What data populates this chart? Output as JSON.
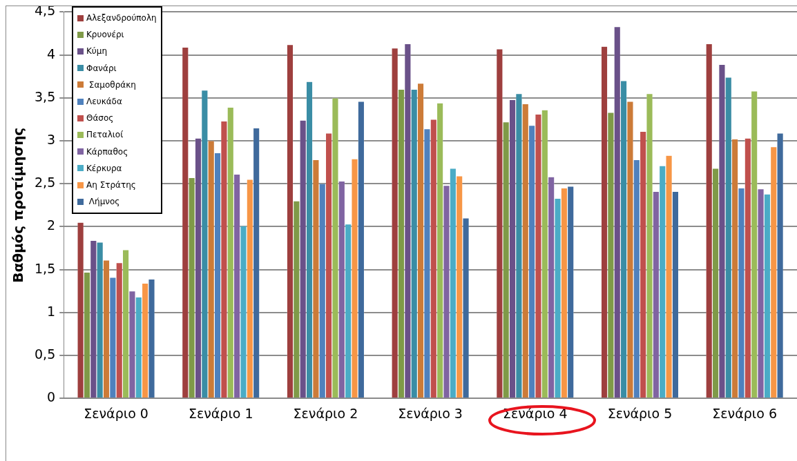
{
  "chart_data": {
    "type": "bar",
    "ylabel": "Βαθμός προτίμησης",
    "categories": [
      "Σενάριο 0",
      "Σενάριο 1",
      "Σενάριο 2",
      "Σενάριο 3",
      "Σενάριο 4",
      "Σενάριο 5",
      "Σενάριο 6"
    ],
    "series": [
      {
        "name": "Αλεξανδρούπολη",
        "color": "#9e3f3e",
        "values": [
          2.05,
          4.09,
          4.12,
          4.08,
          4.07,
          4.1,
          4.13
        ]
      },
      {
        "name": "Κρυονέρι",
        "color": "#7f9a48",
        "values": [
          1.47,
          2.57,
          2.3,
          3.6,
          3.22,
          3.33,
          2.68
        ]
      },
      {
        "name": "Κύμη",
        "color": "#6a5189",
        "values": [
          1.84,
          3.03,
          3.24,
          4.13,
          3.48,
          4.33,
          3.89
        ]
      },
      {
        "name": "Φανάρι",
        "color": "#3a8da5",
        "values": [
          1.82,
          3.59,
          3.69,
          3.6,
          3.55,
          3.7,
          3.74
        ]
      },
      {
        "name": " Σαμοθράκη",
        "color": "#cc7b38",
        "values": [
          1.61,
          3.0,
          2.78,
          3.67,
          3.43,
          3.46,
          3.02
        ]
      },
      {
        "name": "Λευκάδα",
        "color": "#4f81bd",
        "values": [
          1.41,
          2.86,
          2.5,
          3.14,
          3.18,
          2.78,
          2.45
        ]
      },
      {
        "name": "Θάσος",
        "color": "#c0504d",
        "values": [
          1.58,
          3.23,
          3.09,
          3.25,
          3.31,
          3.11,
          3.03
        ]
      },
      {
        "name": "Πεταλιοί",
        "color": "#9bbb59",
        "values": [
          1.73,
          3.39,
          3.5,
          3.44,
          3.36,
          3.55,
          3.58
        ]
      },
      {
        "name": "Κάρπαθος",
        "color": "#8064a2",
        "values": [
          1.25,
          2.61,
          2.53,
          2.48,
          2.58,
          2.41,
          2.44
        ]
      },
      {
        "name": "Κέρκυρα",
        "color": "#4bacc6",
        "values": [
          1.18,
          2.01,
          2.03,
          2.68,
          2.33,
          2.71,
          2.38
        ]
      },
      {
        "name": "Αη Στράτης",
        "color": "#f79646",
        "values": [
          1.34,
          2.55,
          2.79,
          2.59,
          2.45,
          2.83,
          2.93
        ]
      },
      {
        "name": " Λήμνος",
        "color": "#3f6a9c",
        "values": [
          1.39,
          3.15,
          3.46,
          2.1,
          2.47,
          2.41,
          3.09
        ]
      }
    ],
    "ylim": [
      0,
      4.5
    ],
    "yticks": [
      {
        "value": 0,
        "label": "0"
      },
      {
        "value": 0.5,
        "label": "0,5"
      },
      {
        "value": 1,
        "label": "1"
      },
      {
        "value": 1.5,
        "label": "1,5"
      },
      {
        "value": 2,
        "label": "2"
      },
      {
        "value": 2.5,
        "label": "2,5"
      },
      {
        "value": 3,
        "label": "3"
      },
      {
        "value": 3.5,
        "label": "3,5"
      },
      {
        "value": 4,
        "label": "4"
      },
      {
        "value": 4.5,
        "label": "4,5"
      }
    ],
    "grid": "y",
    "legend": "top left"
  }
}
